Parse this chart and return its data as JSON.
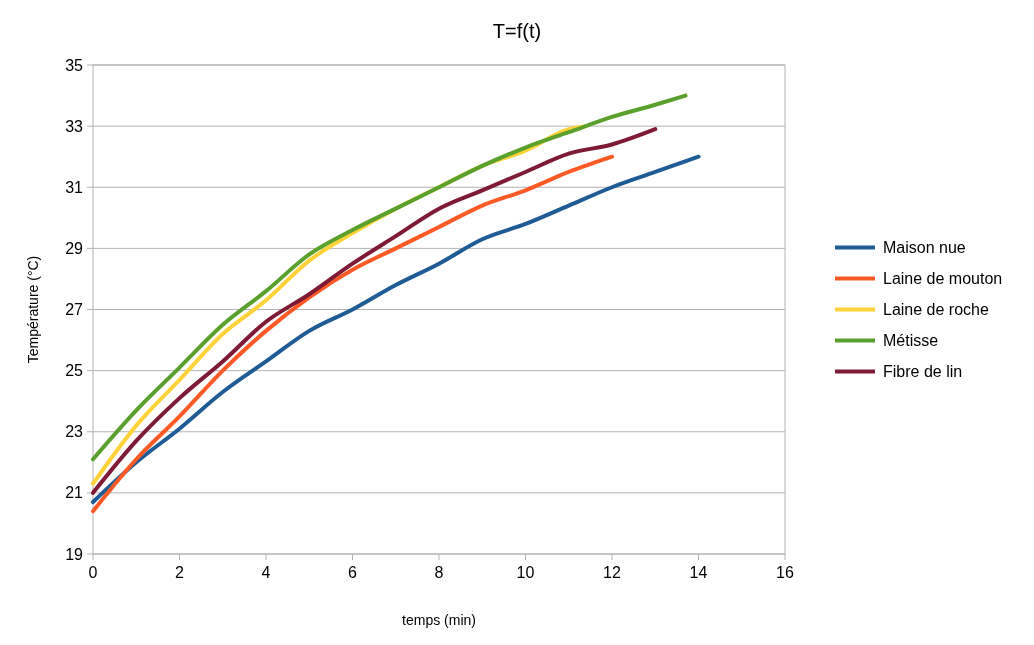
{
  "chart_data": {
    "type": "line",
    "title": "T=f(t)",
    "xlabel": "temps (min)",
    "ylabel": "Température (°C)",
    "xlim": [
      0,
      16
    ],
    "xticks": [
      0,
      2,
      4,
      6,
      8,
      10,
      12,
      14,
      16
    ],
    "ylim": [
      19,
      35
    ],
    "yticks": [
      19,
      21,
      23,
      25,
      27,
      29,
      31,
      33,
      35
    ],
    "grid": "y",
    "legend": "right",
    "marker": "none",
    "line_style": "solid",
    "series": [
      {
        "name": "Maison nue",
        "color": "#1f5b94",
        "x": [
          0,
          1,
          2,
          3,
          4,
          5,
          6,
          7,
          8,
          9,
          10,
          11,
          12,
          13,
          14
        ],
        "values": [
          20.7,
          22.0,
          23.1,
          24.3,
          25.3,
          26.3,
          27.0,
          27.8,
          28.5,
          29.3,
          29.8,
          30.4,
          31.0,
          31.5,
          32.0
        ]
      },
      {
        "name": "Laine de mouton",
        "color": "#ff5a26",
        "x": [
          0,
          1,
          2,
          3,
          4,
          5,
          6,
          7,
          8,
          9,
          10,
          11,
          12
        ],
        "values": [
          20.4,
          22.1,
          23.5,
          25.0,
          26.3,
          27.4,
          28.3,
          29.0,
          29.7,
          30.4,
          30.9,
          31.5,
          32.0
        ]
      },
      {
        "name": "Laine de roche",
        "color": "#ffd23a",
        "x": [
          0,
          1,
          2,
          3,
          4,
          5,
          6,
          7,
          8,
          9,
          10,
          11,
          11.4
        ],
        "values": [
          21.3,
          23.2,
          24.7,
          26.2,
          27.3,
          28.6,
          29.5,
          30.3,
          31.0,
          31.7,
          32.2,
          32.9,
          33.0
        ]
      },
      {
        "name": "Métisse",
        "color": "#5aa02c",
        "x": [
          0,
          1,
          2,
          3,
          4,
          5,
          6,
          7,
          8,
          9,
          10,
          11,
          12,
          13,
          13.7
        ],
        "values": [
          22.1,
          23.7,
          25.1,
          26.5,
          27.6,
          28.8,
          29.6,
          30.3,
          31.0,
          31.7,
          32.3,
          32.8,
          33.3,
          33.7,
          34.0
        ]
      },
      {
        "name": "Fibre de lin",
        "color": "#7e1a35",
        "x": [
          0,
          1,
          2,
          3,
          4,
          5,
          6,
          7,
          8,
          9,
          10,
          11,
          12,
          13
        ],
        "values": [
          21.0,
          22.7,
          24.1,
          25.3,
          26.6,
          27.5,
          28.5,
          29.4,
          30.3,
          30.9,
          31.5,
          32.1,
          32.4,
          32.9
        ]
      }
    ]
  }
}
